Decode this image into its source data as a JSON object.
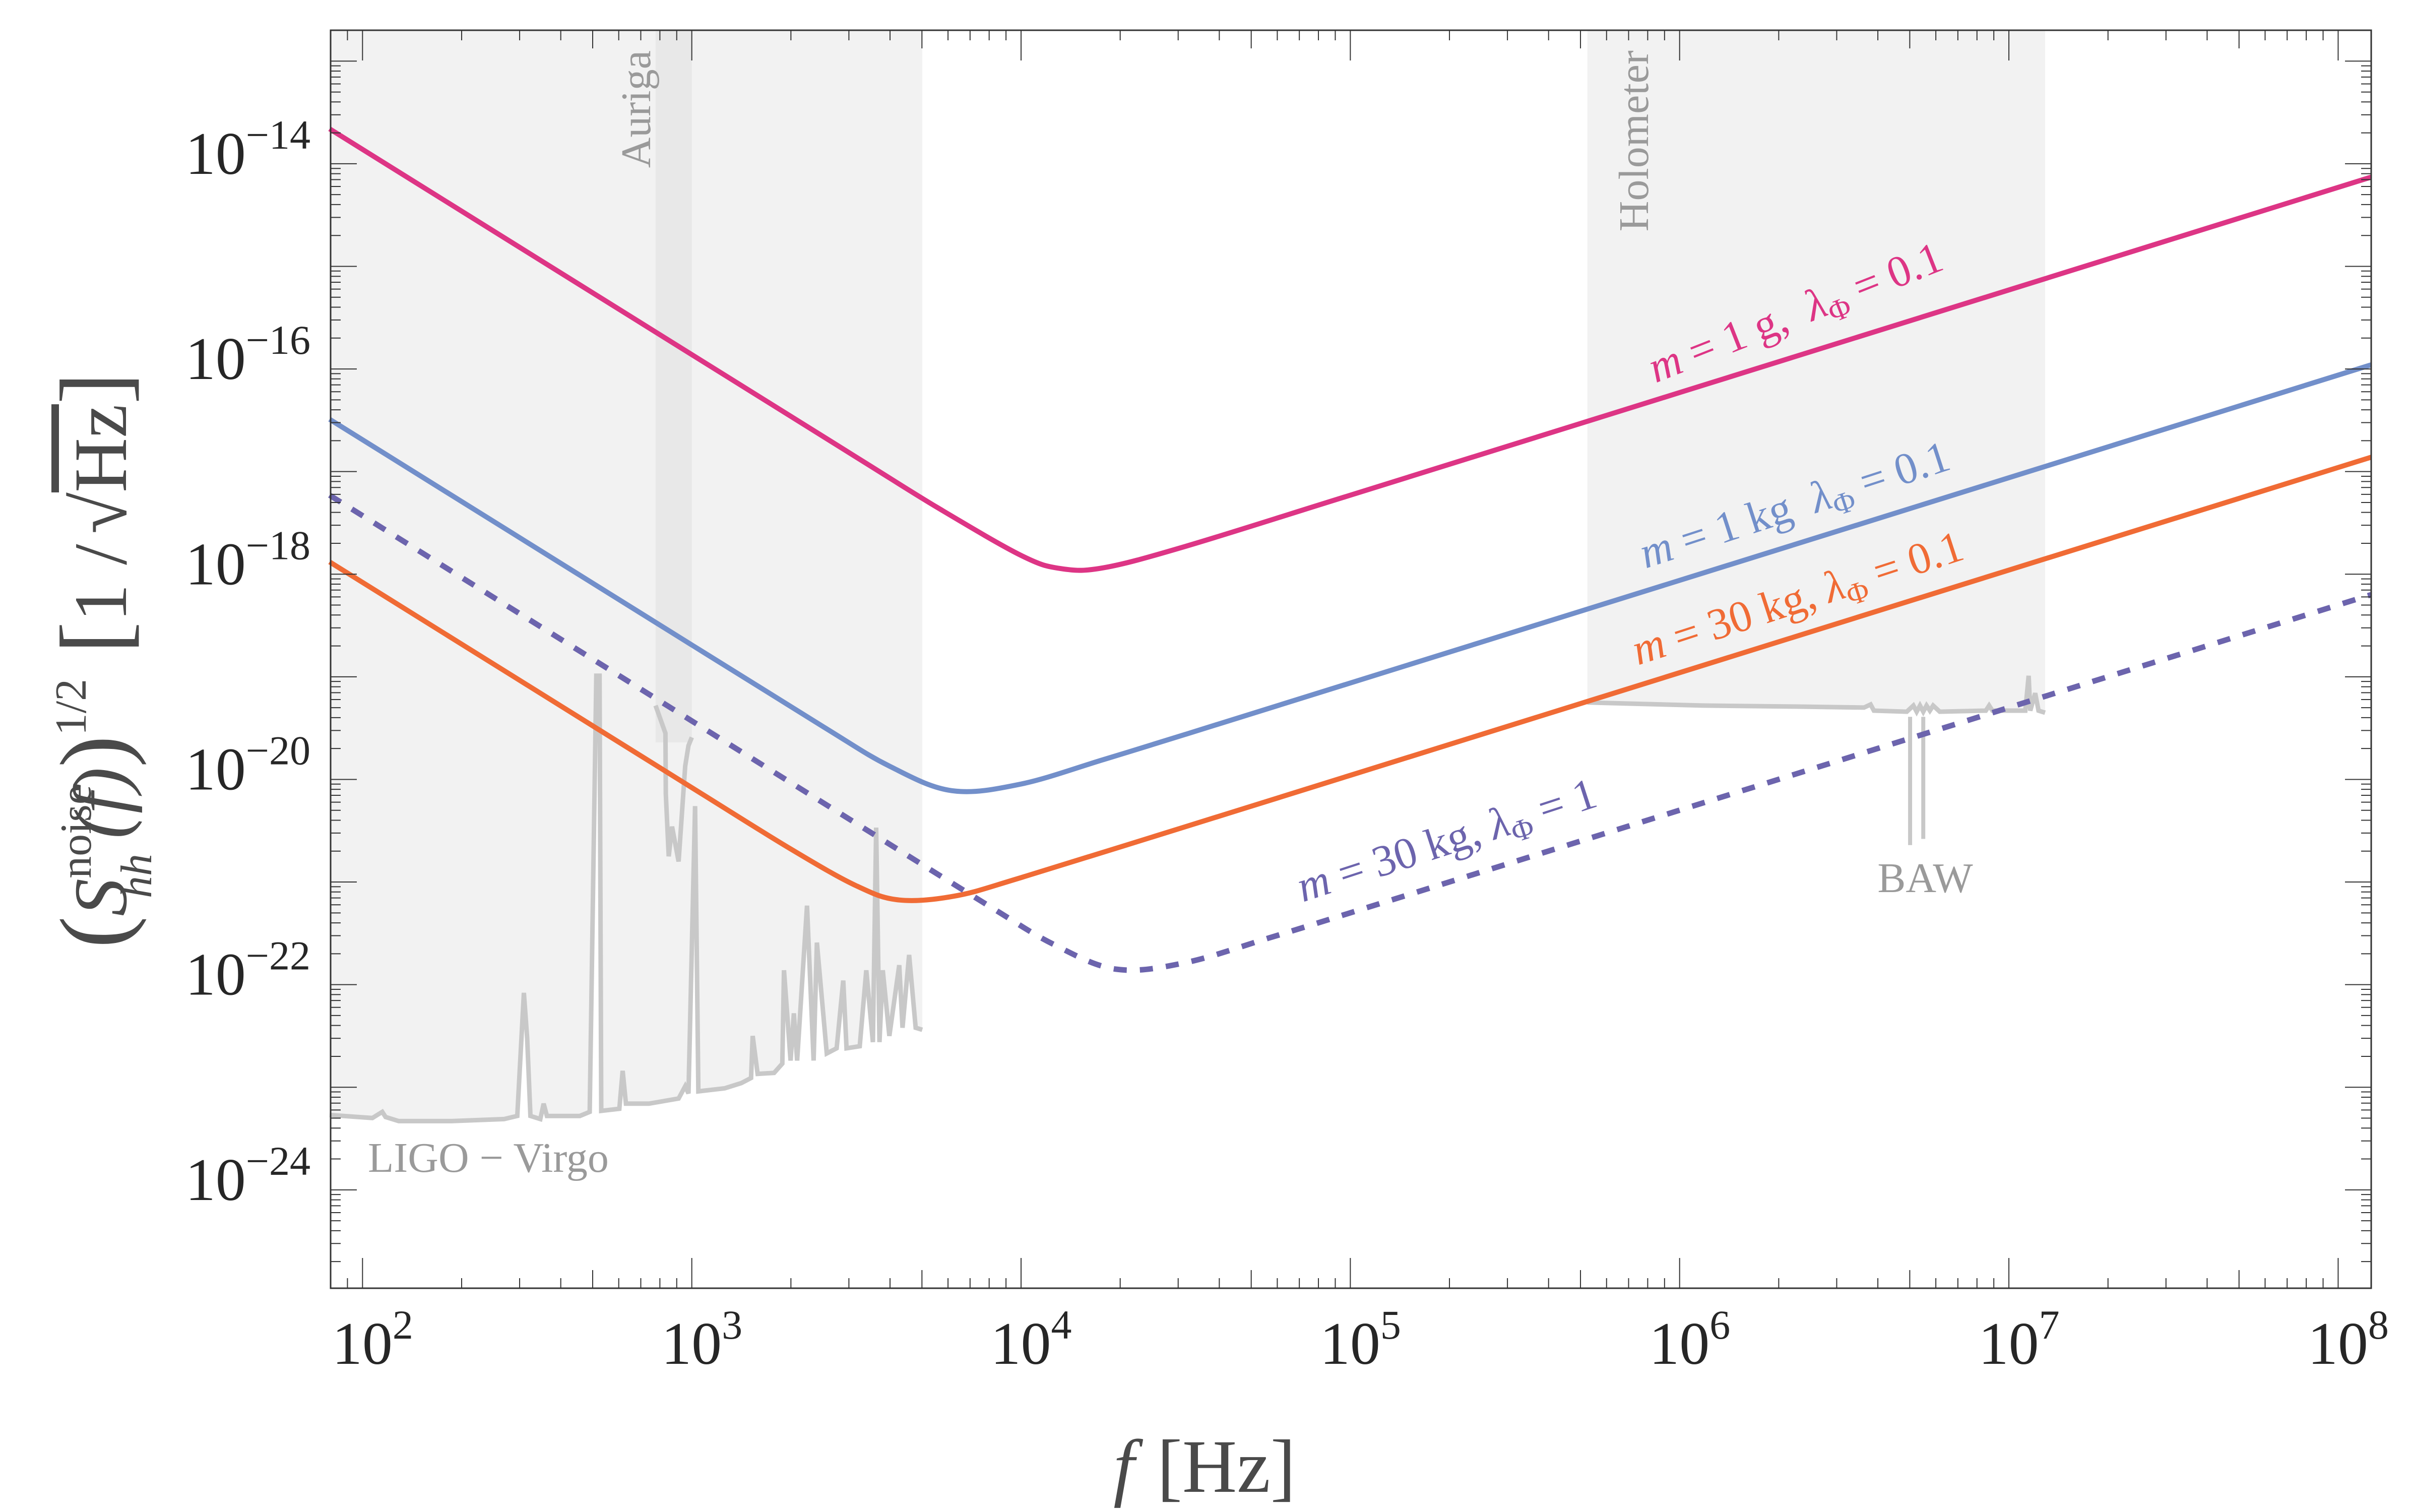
{
  "chart_data": {
    "type": "line",
    "title": "",
    "xlabel": {
      "var": "f",
      "unit": "[Hz]"
    },
    "ylabel": {
      "base": "S",
      "sub": "hh",
      "sup": "noise",
      "arg": "(f)",
      "power": "1/2",
      "unit_num": "1 /",
      "unit_root": "Hz"
    },
    "xscale": "log",
    "yscale": "log",
    "xlim": [
      80,
      126000000.0
    ],
    "ylim": [
      1.1e-25,
      2e-13
    ],
    "grid": false,
    "x_ticks": [
      {
        "value": 100,
        "base": "10",
        "exp": "2"
      },
      {
        "value": 1000,
        "base": "10",
        "exp": "3"
      },
      {
        "value": 10000,
        "base": "10",
        "exp": "4"
      },
      {
        "value": 100000,
        "base": "10",
        "exp": "5"
      },
      {
        "value": 1000000,
        "base": "10",
        "exp": "6"
      },
      {
        "value": 10000000,
        "base": "10",
        "exp": "7"
      },
      {
        "value": 100000000,
        "base": "10",
        "exp": "8"
      }
    ],
    "y_ticks": [
      {
        "value": 1e-14,
        "base": "10",
        "exp": "−14"
      },
      {
        "value": 1e-16,
        "base": "10",
        "exp": "−16"
      },
      {
        "value": 1e-18,
        "base": "10",
        "exp": "−18"
      },
      {
        "value": 1e-20,
        "base": "10",
        "exp": "−20"
      },
      {
        "value": 1e-22,
        "base": "10",
        "exp": "−22"
      },
      {
        "value": 1e-24,
        "base": "10",
        "exp": "−24"
      }
    ],
    "series": [
      {
        "name": "m = 1 g, λΦ = 0.1",
        "label": {
          "m": "m",
          "mass": " = 1 g,  ",
          "lambda": "λ",
          "sub": "Φ",
          "val": " = 0.1"
        },
        "color": "#dd3585",
        "style": "solid",
        "log10_f": [
          1.9,
          2.5,
          3.0,
          3.5,
          3.75,
          4.0,
          4.12,
          4.25,
          4.5,
          5.0,
          6.0,
          7.0,
          8.1
        ],
        "log10_value": [
          -13.66,
          -14.86,
          -15.86,
          -16.86,
          -17.358,
          -17.817,
          -17.945,
          -17.938,
          -17.728,
          -17.23,
          -16.23,
          -15.23,
          -14.13
        ]
      },
      {
        "name": "m = 1 kg  λΦ = 0.1",
        "label": {
          "m": "m",
          "mass": " = 1 kg  ",
          "lambda": "λ",
          "sub": "Φ",
          "val": " = 0.1"
        },
        "color": "#728fca",
        "style": "solid",
        "log10_f": [
          1.9,
          2.5,
          3.0,
          3.4,
          3.6,
          3.79,
          4.0,
          4.25,
          4.5,
          5.0,
          6.0,
          7.0,
          8.1
        ],
        "log10_value": [
          -16.49,
          -17.69,
          -18.69,
          -19.488,
          -19.87,
          -20.11,
          -20.045,
          -19.807,
          -19.56,
          -19.06,
          -18.06,
          -17.06,
          -15.96
        ]
      },
      {
        "name": "m = 30 kg, λΦ = 0.1",
        "label": {
          "m": "m",
          "mass": " = 30 kg, ",
          "lambda": "λ",
          "sub": "Φ",
          "val": " = 0.1"
        },
        "color": "#f06b35",
        "style": "solid",
        "log10_f": [
          1.9,
          2.5,
          3.0,
          3.3,
          3.5,
          3.63,
          3.8,
          4.0,
          4.5,
          5.0,
          6.0,
          7.0,
          8.1
        ],
        "log10_value": [
          -17.88,
          -19.08,
          -20.08,
          -20.677,
          -21.037,
          -21.175,
          -21.136,
          -20.957,
          -20.46,
          -19.96,
          -18.96,
          -17.96,
          -16.86
        ]
      },
      {
        "name": "m = 30 kg, λΦ = 1",
        "label": {
          "m": "m",
          "mass": " = 30 kg, ",
          "lambda": "λ",
          "sub": "Φ",
          "val": " = 1"
        },
        "color": "#6c64ad",
        "style": "dashed",
        "log10_f": [
          1.9,
          2.5,
          3.0,
          3.5,
          3.9,
          4.1,
          4.29,
          4.5,
          4.75,
          5.0,
          6.0,
          7.0,
          8.1
        ],
        "log10_value": [
          -17.23,
          -18.43,
          -19.43,
          -20.43,
          -21.228,
          -21.61,
          -21.85,
          -21.785,
          -21.548,
          -21.3,
          -20.3,
          -19.3,
          -18.2
        ]
      }
    ],
    "experiments": [
      {
        "name": "LIGO − Virgo",
        "color": "#c8c8c8",
        "shade": "#f2f2f2",
        "shade_log10_f": [
          1.9,
          3.7
        ],
        "log10_f": [
          1.9,
          2.03,
          2.06,
          2.07,
          2.11,
          2.27,
          2.43,
          2.47,
          2.49,
          2.5,
          2.51,
          2.54,
          2.55,
          2.56,
          2.66,
          2.69,
          2.71,
          2.72,
          2.725,
          2.78,
          2.79,
          2.8,
          2.87,
          2.96,
          2.98,
          2.99,
          3.01,
          3.02,
          3.1,
          3.15,
          3.18,
          3.185,
          3.2,
          3.25,
          3.275,
          3.28,
          3.3,
          3.31,
          3.32,
          3.35,
          3.37,
          3.38,
          3.41,
          3.44,
          3.46,
          3.47,
          3.51,
          3.53,
          3.55,
          3.56,
          3.57,
          3.58,
          3.6,
          3.63,
          3.64,
          3.66,
          3.68,
          3.7
        ],
        "log10_value": [
          -23.27,
          -23.3,
          -23.24,
          -23.29,
          -23.33,
          -23.33,
          -23.31,
          -23.28,
          -22.08,
          -22.52,
          -23.28,
          -23.31,
          -23.16,
          -23.28,
          -23.28,
          -23.24,
          -18.99,
          -18.99,
          -23.23,
          -23.21,
          -22.84,
          -23.16,
          -23.16,
          -23.11,
          -22.99,
          -23.06,
          -20.26,
          -23.04,
          -23.01,
          -22.96,
          -22.91,
          -22.5,
          -22.87,
          -22.86,
          -22.77,
          -21.86,
          -22.74,
          -22.28,
          -22.74,
          -21.23,
          -22.74,
          -21.59,
          -22.67,
          -22.62,
          -21.96,
          -22.62,
          -22.6,
          -21.86,
          -22.56,
          -20.47,
          -22.56,
          -21.86,
          -22.5,
          -21.81,
          -22.42,
          -21.71,
          -22.42,
          -22.44
        ]
      },
      {
        "name": "Auriga",
        "color": "#c8c8c8",
        "shade": "#e8e8e8",
        "shade_log10_f": [
          2.89,
          3.0
        ],
        "log10_f": [
          2.89,
          2.92,
          2.921,
          2.93,
          2.94,
          2.96,
          2.98,
          2.99,
          3.0
        ],
        "log10_value": [
          -19.28,
          -19.55,
          -20.14,
          -20.75,
          -20.46,
          -20.8,
          -19.87,
          -19.67,
          -19.59
        ]
      },
      {
        "name": "Holometer",
        "color": "#c8c8c8",
        "shade": "#f2f2f2",
        "shade_log10_f": [
          5.72,
          7.11
        ],
        "log10_f": [
          5.72,
          6.07,
          6.35,
          6.56,
          6.58,
          6.59,
          6.69,
          6.71,
          6.72,
          6.73,
          6.74,
          6.75,
          6.76,
          6.77,
          6.79,
          6.93,
          6.94,
          6.95,
          7.05,
          7.06,
          7.065,
          7.08,
          7.09,
          7.11
        ],
        "log10_value": [
          -19.25,
          -19.28,
          -19.29,
          -19.3,
          -19.27,
          -19.33,
          -19.34,
          -19.28,
          -19.34,
          -19.28,
          -19.34,
          -19.28,
          -19.33,
          -19.28,
          -19.34,
          -19.33,
          -19.28,
          -19.33,
          -19.33,
          -18.99,
          -19.33,
          -19.16,
          -19.33,
          -19.35
        ]
      },
      {
        "name": "BAW",
        "color": "#c8c8c8",
        "lines": [
          {
            "log10_f": 6.7,
            "log10_top": -19.39,
            "log10_bottom": -20.64
          },
          {
            "log10_f": 6.74,
            "log10_top": -19.39,
            "log10_bottom": -20.58
          }
        ]
      }
    ],
    "annotations": [
      {
        "text": "Auriga",
        "near_log10_f": 2.87,
        "orientation": "vertical"
      },
      {
        "text": "Holometer",
        "near_log10_f": 5.7,
        "orientation": "vertical"
      },
      {
        "text": "BAW",
        "near_log10_f": 6.72,
        "orientation": "horizontal"
      },
      {
        "text": "LIGO − Virgo",
        "near_log10_f": 2.2,
        "orientation": "horizontal"
      }
    ],
    "legend": "inline-labels"
  }
}
